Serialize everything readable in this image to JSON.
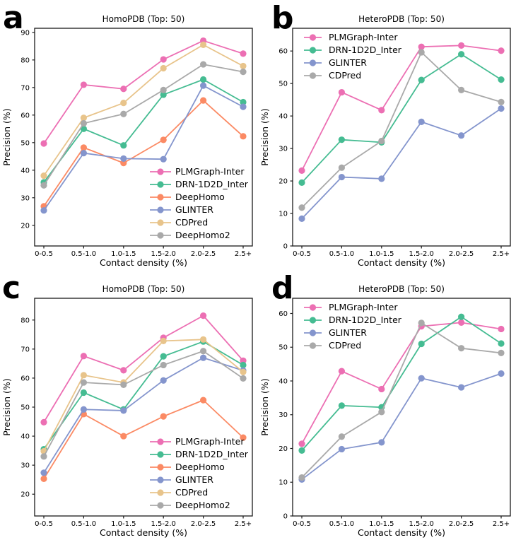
{
  "figure": {
    "background": "#ffffff",
    "axis_color": "#1a1a1a",
    "text_color": "#000000"
  },
  "chart_data": [
    {
      "type": "line",
      "panel_label": "a",
      "title": "HomoPDB (Top: 50)",
      "xlabel": "Contact density (%)",
      "ylabel": "Precision (%)",
      "categories": [
        "0-0.5",
        "0.5-1.0",
        "1.0-1.5",
        "1.5-2.0",
        "2.0-2.5",
        "2.5+"
      ],
      "ylim": [
        12.5,
        91.5
      ],
      "yticks": [
        20,
        30,
        40,
        50,
        60,
        70,
        80,
        90
      ],
      "grid": false,
      "legend_position": "lower-right",
      "series": [
        {
          "name": "PLMGraph-Inter",
          "color": "#ec6fb3",
          "values": [
            49.7,
            71.0,
            69.5,
            80.2,
            87.0,
            82.3
          ]
        },
        {
          "name": "DRN-1D2D_Inter",
          "color": "#45bc92",
          "values": [
            35.6,
            55.0,
            49.0,
            67.4,
            72.9,
            64.7
          ]
        },
        {
          "name": "DeepHomo",
          "color": "#fb8a64",
          "values": [
            26.9,
            48.2,
            42.6,
            51.0,
            65.3,
            52.3
          ]
        },
        {
          "name": "GLINTER",
          "color": "#8495cd",
          "values": [
            25.4,
            46.2,
            44.2,
            44.0,
            70.7,
            63.0
          ]
        },
        {
          "name": "CDPred",
          "color": "#e8c48b",
          "values": [
            38.0,
            59.0,
            64.4,
            77.0,
            85.5,
            77.8
          ]
        },
        {
          "name": "DeepHomo2",
          "color": "#a9a9a9",
          "values": [
            34.5,
            57.0,
            60.4,
            69.1,
            78.4,
            75.7
          ]
        }
      ]
    },
    {
      "type": "line",
      "panel_label": "b",
      "title": "HeteroPDB (Top: 50)",
      "xlabel": "Contact density (%)",
      "ylabel": "Precision (%)",
      "categories": [
        "0-0.5",
        "0.5-1.0",
        "1.0-1.5",
        "1.5-2.0",
        "2.0-2.5",
        "2.5+"
      ],
      "ylim": [
        0,
        67
      ],
      "yticks": [
        0,
        10,
        20,
        30,
        40,
        50,
        60
      ],
      "grid": false,
      "legend_position": "upper-left",
      "series": [
        {
          "name": "PLMGraph-Inter",
          "color": "#ec6fb3",
          "values": [
            23.2,
            47.3,
            41.8,
            61.3,
            61.7,
            60.1
          ]
        },
        {
          "name": "DRN-1D2D_Inter",
          "color": "#45bc92",
          "values": [
            19.5,
            32.7,
            31.9,
            51.1,
            59.0,
            51.2
          ]
        },
        {
          "name": "GLINTER",
          "color": "#8495cd",
          "values": [
            8.4,
            21.2,
            20.7,
            38.2,
            34.0,
            42.3
          ]
        },
        {
          "name": "CDPred",
          "color": "#a9a9a9",
          "values": [
            11.8,
            24.1,
            32.3,
            59.6,
            48.0,
            44.3
          ]
        }
      ]
    },
    {
      "type": "line",
      "panel_label": "c",
      "title": "HomoPDB (Top: 50)",
      "xlabel": "Contact density (%)",
      "ylabel": "Precision (%)",
      "categories": [
        "0-0.5",
        "0.5-1.0",
        "1.0-1.5",
        "1.5-2.0",
        "2.0-2.5",
        "2.5+"
      ],
      "ylim": [
        12.5,
        87.5
      ],
      "yticks": [
        20,
        30,
        40,
        50,
        60,
        70,
        80
      ],
      "grid": false,
      "legend_position": "lower-right",
      "series": [
        {
          "name": "PLMGraph-Inter",
          "color": "#ec6fb3",
          "values": [
            44.8,
            67.6,
            62.7,
            73.9,
            81.5,
            66.0
          ]
        },
        {
          "name": "DRN-1D2D_Inter",
          "color": "#45bc92",
          "values": [
            35.5,
            55.0,
            49.2,
            67.5,
            72.6,
            64.5
          ]
        },
        {
          "name": "DeepHomo",
          "color": "#fb8a64",
          "values": [
            25.3,
            47.6,
            40.0,
            46.8,
            52.4,
            39.5
          ]
        },
        {
          "name": "GLINTER",
          "color": "#8495cd",
          "values": [
            27.4,
            49.2,
            48.8,
            59.2,
            67.0,
            62.6
          ]
        },
        {
          "name": "CDPred",
          "color": "#e8c48b",
          "values": [
            34.8,
            61.0,
            58.5,
            72.8,
            73.3,
            62.1
          ]
        },
        {
          "name": "DeepHomo2",
          "color": "#a9a9a9",
          "values": [
            33.0,
            58.5,
            57.7,
            64.5,
            69.3,
            59.9
          ]
        }
      ]
    },
    {
      "type": "line",
      "panel_label": "d",
      "title": "HeteroPDB (Top: 50)",
      "xlabel": "Contact density (%)",
      "ylabel": "Precision (%)",
      "categories": [
        "0-0.5",
        "0.5-1.0",
        "1.0-1.5",
        "1.5-2.0",
        "2.0-2.5",
        "2.5+"
      ],
      "ylim": [
        0,
        64.5
      ],
      "yticks": [
        0,
        10,
        20,
        30,
        40,
        50,
        60
      ],
      "grid": false,
      "legend_position": "upper-left",
      "series": [
        {
          "name": "PLMGraph-Inter",
          "color": "#ec6fb3",
          "values": [
            21.4,
            42.9,
            37.6,
            56.2,
            57.3,
            55.4
          ]
        },
        {
          "name": "DRN-1D2D_Inter",
          "color": "#45bc92",
          "values": [
            19.4,
            32.7,
            32.2,
            51.0,
            59.0,
            51.1
          ]
        },
        {
          "name": "GLINTER",
          "color": "#8495cd",
          "values": [
            10.8,
            19.8,
            21.8,
            40.8,
            38.1,
            42.2
          ]
        },
        {
          "name": "CDPred",
          "color": "#a9a9a9",
          "values": [
            11.4,
            23.5,
            30.8,
            57.2,
            49.7,
            48.3
          ]
        }
      ]
    }
  ]
}
